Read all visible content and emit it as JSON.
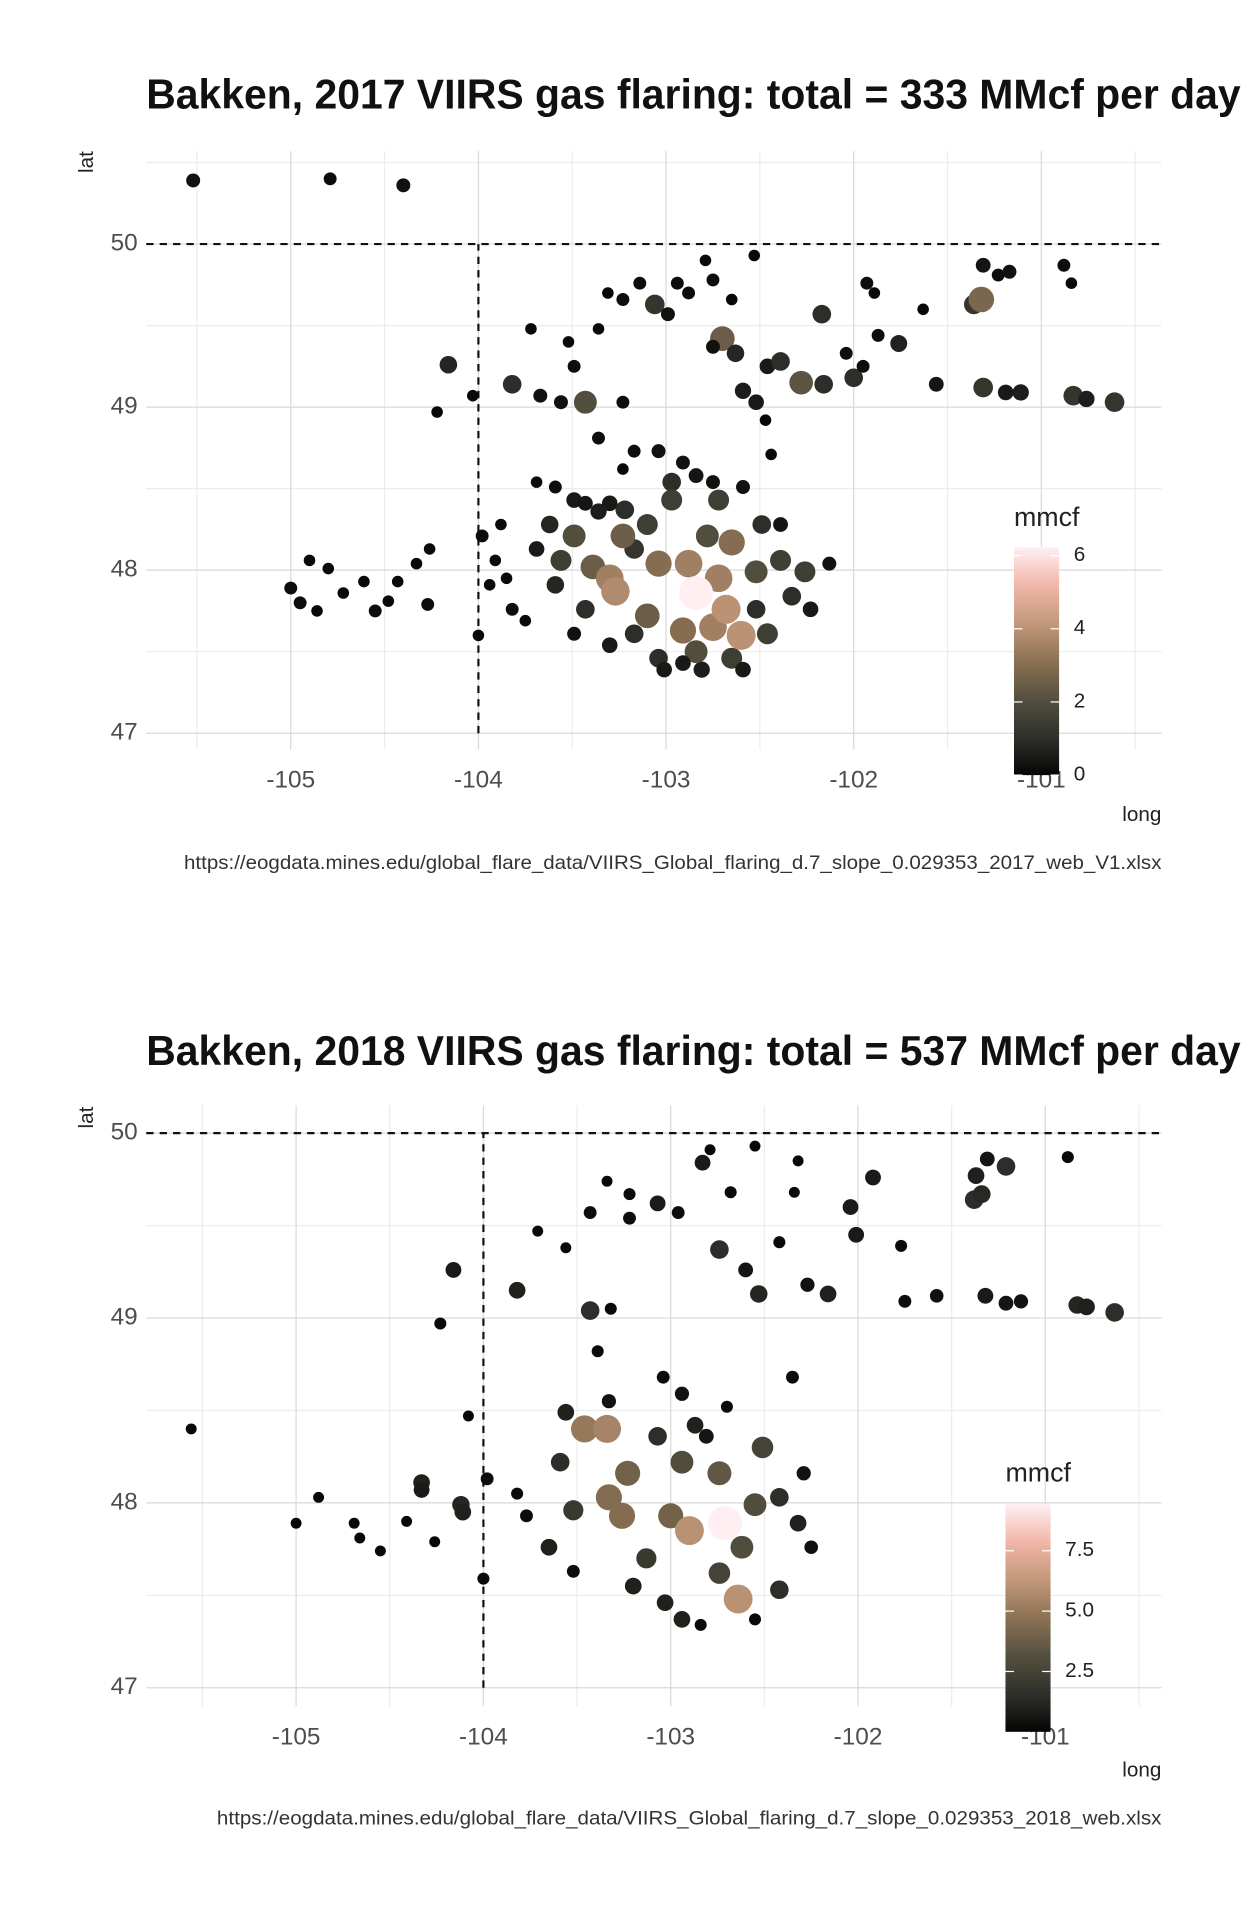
{
  "chart_data": [
    {
      "type": "scatter",
      "title": "Bakken, 2017 VIIRS gas flaring: total = 333 MMcf per day",
      "x_label": "long",
      "y_label": "lat",
      "caption": "https://eogdata.mines.edu/global_flare_data/VIIRS_Global_flaring_d.7_slope_0.029353_2017_web_V1.xlsx",
      "xlim": [
        -105.77,
        -100.36
      ],
      "ylim": [
        46.9,
        50.57
      ],
      "xticks": [
        -105,
        -104,
        -103,
        -102,
        -101
      ],
      "yticks": [
        47,
        48,
        49,
        50
      ],
      "grid": true,
      "hline": 50,
      "vline": -104,
      "vline_span": [
        47,
        50
      ],
      "color_scale": {
        "title": "mmcf",
        "lim": [
          0,
          6.23
        ],
        "ticks": [
          0,
          2,
          4,
          6
        ],
        "colors": [
          "#050505",
          "#2f302b",
          "#54503f",
          "#8c7154",
          "#c3987a",
          "#f1b6a8",
          "#fff0f4"
        ]
      },
      "x": [
        -105.52,
        -104.79,
        -104.4,
        -104.16,
        -104.22,
        -104.03,
        -105.0,
        -104.9,
        -104.8,
        -104.95,
        -104.86,
        -104.72,
        -104.61,
        -104.55,
        -104.48,
        -104.43,
        -104.33,
        -104.27,
        -104.26,
        -104.0,
        -103.98,
        -103.91,
        -103.85,
        -103.94,
        -103.82,
        -103.75,
        -103.88,
        -103.72,
        -103.82,
        -103.67,
        -103.56,
        -103.43,
        -103.52,
        -103.49,
        -103.36,
        -103.31,
        -103.23,
        -103.14,
        -103.06,
        -102.99,
        -102.94,
        -102.88,
        -102.79,
        -102.75,
        -102.65,
        -102.53,
        -102.7,
        -102.75,
        -102.63,
        -102.46,
        -102.39,
        -102.59,
        -102.52,
        -102.47,
        -102.28,
        -102.17,
        -102.16,
        -102.04,
        -102.0,
        -101.95,
        -101.93,
        -101.89,
        -101.87,
        -101.76,
        -101.63,
        -101.56,
        -101.36,
        -101.32,
        -101.31,
        -101.23,
        -101.17,
        -101.31,
        -101.19,
        -101.11,
        -100.88,
        -100.84,
        -100.83,
        -100.76,
        -100.61,
        -103.23,
        -103.36,
        -103.23,
        -103.17,
        -103.04,
        -102.97,
        -102.91,
        -102.84,
        -102.75,
        -103.69,
        -103.59,
        -103.49,
        -103.43,
        -103.3,
        -103.22,
        -102.44,
        -102.49,
        -103.62,
        -103.17,
        -102.52,
        -102.81,
        -102.39,
        -103.36,
        -102.59,
        -103.04,
        -102.84,
        -102.65,
        -103.17,
        -103.43,
        -103.59,
        -103.69,
        -103.1,
        -102.97,
        -102.72,
        -102.78,
        -103.01,
        -102.91,
        -102.59,
        -103.3,
        -103.49,
        -102.13,
        -102.23,
        -103.56,
        -102.52,
        -102.39,
        -102.26,
        -102.33,
        -102.46,
        -103.49,
        -103.39,
        -103.23,
        -103.1,
        -103.04,
        -102.91,
        -102.65,
        -103.3,
        -102.72,
        -102.88,
        -102.75,
        -103.27,
        -102.68,
        -102.6,
        -102.84
      ],
      "y": [
        50.39,
        50.4,
        50.36,
        49.26,
        48.97,
        49.07,
        47.89,
        48.06,
        48.01,
        47.8,
        47.75,
        47.86,
        47.93,
        47.75,
        47.81,
        47.93,
        48.04,
        47.79,
        48.13,
        47.6,
        48.21,
        48.06,
        47.95,
        47.91,
        47.76,
        47.69,
        48.28,
        49.48,
        49.14,
        49.07,
        49.03,
        49.03,
        49.4,
        49.25,
        49.48,
        49.7,
        49.66,
        49.76,
        49.63,
        49.57,
        49.76,
        49.7,
        49.9,
        49.78,
        49.66,
        49.93,
        49.42,
        49.37,
        49.33,
        49.25,
        49.28,
        49.1,
        49.03,
        48.92,
        49.15,
        49.57,
        49.14,
        49.33,
        49.18,
        49.25,
        49.76,
        49.7,
        49.44,
        49.39,
        49.6,
        49.14,
        49.63,
        49.66,
        49.87,
        49.81,
        49.83,
        49.12,
        49.09,
        49.09,
        49.87,
        49.76,
        49.07,
        49.05,
        49.03,
        49.03,
        48.81,
        48.62,
        48.73,
        48.73,
        48.54,
        48.66,
        48.58,
        48.54,
        48.54,
        48.51,
        48.43,
        48.41,
        48.41,
        48.37,
        48.71,
        48.28,
        48.28,
        48.13,
        47.76,
        47.39,
        48.28,
        48.36,
        48.51,
        47.46,
        47.5,
        47.46,
        47.61,
        47.76,
        47.91,
        48.13,
        48.28,
        48.43,
        48.43,
        48.21,
        47.39,
        47.43,
        47.39,
        47.54,
        47.61,
        48.04,
        47.76,
        48.06,
        47.99,
        48.06,
        47.99,
        47.84,
        47.61,
        48.21,
        48.02,
        48.21,
        47.72,
        48.04,
        47.63,
        48.17,
        47.95,
        47.95,
        48.04,
        47.65,
        47.87,
        47.76,
        47.6,
        47.86
      ],
      "values": [
        0.3,
        0.2,
        0.3,
        0.8,
        0.1,
        0.1,
        0.2,
        0.1,
        0.1,
        0.2,
        0.1,
        0.1,
        0.1,
        0.2,
        0.1,
        0.1,
        0.1,
        0.2,
        0.1,
        0.1,
        0.2,
        0.1,
        0.1,
        0.1,
        0.2,
        0.1,
        0.1,
        0.1,
        1.0,
        0.3,
        0.3,
        2.0,
        0.1,
        0.2,
        0.1,
        0.1,
        0.2,
        0.2,
        1.2,
        0.3,
        0.2,
        0.2,
        0.1,
        0.2,
        0.1,
        0.1,
        2.5,
        0.3,
        0.8,
        0.5,
        1.0,
        0.6,
        0.5,
        0.1,
        2.2,
        1.0,
        1.0,
        0.2,
        1.0,
        0.2,
        0.2,
        0.1,
        0.2,
        0.7,
        0.1,
        0.4,
        1.2,
        2.8,
        0.4,
        0.2,
        0.3,
        1.2,
        0.5,
        0.6,
        0.2,
        0.1,
        1.2,
        0.6,
        1.2,
        0.2,
        0.2,
        0.1,
        0.2,
        0.3,
        1.0,
        0.3,
        0.4,
        0.3,
        0.1,
        0.2,
        0.5,
        0.4,
        0.5,
        1.0,
        0.1,
        1.0,
        0.8,
        1.2,
        1.0,
        0.6,
        0.4,
        0.6,
        0.3,
        1.0,
        2.0,
        1.5,
        1.0,
        1.0,
        0.8,
        0.5,
        1.5,
        1.5,
        1.5,
        2.0,
        0.5,
        0.5,
        0.5,
        0.5,
        0.3,
        0.3,
        0.5,
        1.5,
        2.0,
        1.5,
        1.5,
        1.0,
        1.5,
        2.0,
        2.5,
        2.5,
        2.5,
        3.0,
        3.0,
        3.0,
        3.5,
        3.5,
        3.5,
        3.5,
        3.8,
        4.0,
        4.0,
        6.2
      ]
    },
    {
      "type": "scatter",
      "title": "Bakken, 2018 VIIRS gas flaring: total = 537 MMcf per day",
      "x_label": "long",
      "y_label": "lat",
      "caption": "https://eogdata.mines.edu/global_flare_data/VIIRS_Global_flaring_d.7_slope_0.029353_2018_web.xlsx",
      "xlim": [
        -105.8,
        -100.38
      ],
      "ylim": [
        46.9,
        50.15
      ],
      "xticks": [
        -105,
        -104,
        -103,
        -102,
        -101
      ],
      "yticks": [
        47,
        48,
        49,
        50
      ],
      "grid": true,
      "hline": 50,
      "vline": -104,
      "vline_span": [
        47,
        50
      ],
      "color_scale": {
        "title": "mmcf",
        "lim": [
          0,
          9.44
        ],
        "ticks": [
          2.5,
          {
            "value": 5,
            "label": "5.0"
          },
          7.5
        ],
        "colors": [
          "#050505",
          "#2f302b",
          "#54503f",
          "#8c7154",
          "#c3987a",
          "#f1b6a8",
          "#fff0f4"
        ]
      },
      "x": [
        -105.56,
        -105.0,
        -104.88,
        -104.69,
        -104.66,
        -104.55,
        -104.41,
        -104.33,
        -104.33,
        -104.26,
        -104.23,
        -104.16,
        -104.12,
        -104.11,
        -104.08,
        -104.0,
        -103.98,
        -103.82,
        -103.77,
        -103.82,
        -103.71,
        -103.56,
        -103.43,
        -103.43,
        -103.34,
        -103.22,
        -103.22,
        -103.07,
        -102.96,
        -102.83,
        -102.79,
        -102.68,
        -102.74,
        -102.6,
        -102.55,
        -102.53,
        -102.42,
        -102.32,
        -102.34,
        -102.27,
        -102.16,
        -102.04,
        -102.01,
        -101.92,
        -101.77,
        -101.75,
        -101.58,
        -101.38,
        -101.34,
        -101.37,
        -101.31,
        -101.21,
        -101.32,
        -101.21,
        -101.13,
        -100.88,
        -100.83,
        -100.78,
        -100.63,
        -103.32,
        -103.39,
        -103.04,
        -102.94,
        -102.81,
        -102.7,
        -102.35,
        -102.25,
        -103.52,
        -103.33,
        -102.84,
        -102.55,
        -102.29,
        -103.56,
        -102.94,
        -103.2,
        -103.65,
        -102.32,
        -103.03,
        -102.87,
        -102.42,
        -103.59,
        -103.07,
        -102.42,
        -103.13,
        -103.52,
        -102.51,
        -102.74,
        -102.94,
        -102.55,
        -102.62,
        -102.74,
        -103.23,
        -103.0,
        -103.33,
        -103.26,
        -103.46,
        -103.34,
        -102.9,
        -102.64,
        -102.71
      ],
      "y": [
        48.4,
        47.89,
        48.03,
        47.89,
        47.81,
        47.74,
        47.9,
        48.11,
        48.07,
        47.79,
        48.97,
        49.26,
        47.99,
        47.95,
        48.47,
        47.59,
        48.13,
        48.05,
        47.93,
        49.15,
        49.47,
        49.38,
        49.04,
        49.57,
        49.74,
        49.67,
        49.54,
        49.62,
        49.57,
        49.84,
        49.91,
        49.68,
        49.37,
        49.26,
        49.93,
        49.13,
        49.41,
        49.85,
        49.68,
        49.18,
        49.13,
        49.6,
        49.45,
        49.76,
        49.39,
        49.09,
        49.12,
        49.64,
        49.67,
        49.77,
        49.86,
        49.82,
        49.12,
        49.08,
        49.09,
        49.87,
        49.07,
        49.06,
        49.03,
        49.05,
        48.82,
        48.68,
        48.59,
        48.36,
        48.52,
        48.68,
        47.76,
        47.63,
        48.55,
        47.34,
        47.37,
        48.16,
        48.49,
        47.37,
        47.55,
        47.76,
        47.89,
        47.46,
        48.42,
        47.53,
        48.22,
        48.36,
        48.03,
        47.7,
        47.96,
        48.3,
        47.62,
        48.22,
        47.99,
        47.76,
        48.16,
        48.16,
        47.93,
        48.03,
        47.93,
        48.4,
        48.4,
        47.85,
        47.48,
        47.89
      ],
      "values": [
        0.1,
        0.1,
        0.1,
        0.1,
        0.1,
        0.1,
        0.1,
        1.0,
        0.8,
        0.1,
        0.2,
        0.8,
        1.2,
        1.0,
        0.1,
        0.2,
        0.3,
        0.2,
        0.3,
        1.0,
        0.1,
        0.1,
        1.5,
        0.3,
        0.1,
        0.2,
        0.3,
        0.8,
        0.3,
        0.8,
        0.1,
        0.2,
        1.5,
        0.6,
        0.1,
        1.2,
        0.2,
        0.1,
        0.1,
        0.5,
        1.0,
        0.8,
        0.8,
        0.8,
        0.2,
        0.3,
        0.4,
        1.5,
        1.3,
        1.0,
        0.6,
        1.5,
        0.8,
        0.6,
        0.5,
        0.2,
        1.2,
        1.0,
        1.5,
        0.2,
        0.2,
        0.3,
        0.5,
        0.6,
        0.2,
        0.3,
        0.4,
        0.3,
        0.5,
        0.2,
        0.2,
        0.5,
        1.0,
        1.0,
        1.0,
        1.0,
        1.0,
        1.0,
        1.0,
        1.5,
        1.5,
        1.5,
        1.5,
        2.0,
        2.0,
        2.5,
        2.5,
        3.0,
        3.0,
        3.0,
        3.5,
        4.0,
        4.0,
        4.5,
        4.5,
        5.0,
        5.5,
        6.0,
        6.0,
        9.4
      ]
    }
  ]
}
